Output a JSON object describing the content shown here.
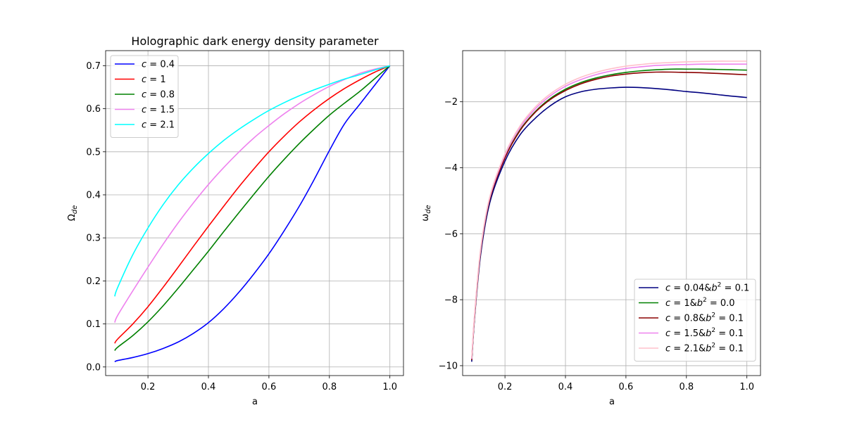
{
  "chart_data": [
    {
      "type": "line",
      "title": "Holographic dark energy density parameter",
      "xlabel": "a",
      "ylabel": "Ω_de",
      "xlim": [
        0.06,
        1.045
      ],
      "ylim": [
        -0.02,
        0.735
      ],
      "xticks": [
        0.2,
        0.4,
        0.6,
        0.8,
        1.0
      ],
      "xtick_labels": [
        "0.2",
        "0.4",
        "0.6",
        "0.8",
        "1.0"
      ],
      "yticks": [
        0.0,
        0.1,
        0.2,
        0.3,
        0.4,
        0.5,
        0.6,
        0.7
      ],
      "ytick_labels": [
        "0.0",
        "0.1",
        "0.2",
        "0.3",
        "0.4",
        "0.5",
        "0.6",
        "0.7"
      ],
      "grid": true,
      "legend_position": "top-left",
      "x": [
        0.09,
        0.1,
        0.15,
        0.2,
        0.25,
        0.3,
        0.35,
        0.4,
        0.45,
        0.5,
        0.55,
        0.6,
        0.65,
        0.7,
        0.75,
        0.8,
        0.85,
        0.9,
        0.95,
        1.0
      ],
      "series": [
        {
          "name_parts": [
            "c",
            "0.4"
          ],
          "color": "#0000ff",
          "values": [
            0.012,
            0.015,
            0.022,
            0.031,
            0.043,
            0.058,
            0.078,
            0.103,
            0.135,
            0.173,
            0.216,
            0.263,
            0.316,
            0.373,
            0.436,
            0.503,
            0.565,
            0.61,
            0.655,
            0.7
          ]
        },
        {
          "name_parts": [
            "c",
            "1"
          ],
          "color": "#ff0000",
          "values": [
            0.055,
            0.065,
            0.1,
            0.14,
            0.185,
            0.232,
            0.28,
            0.327,
            0.373,
            0.418,
            0.46,
            0.5,
            0.536,
            0.569,
            0.598,
            0.624,
            0.647,
            0.667,
            0.685,
            0.7
          ]
        },
        {
          "name_parts": [
            "c",
            "0.8"
          ],
          "color": "#008000",
          "values": [
            0.038,
            0.046,
            0.073,
            0.105,
            0.142,
            0.183,
            0.226,
            0.269,
            0.314,
            0.358,
            0.401,
            0.443,
            0.482,
            0.519,
            0.553,
            0.585,
            0.613,
            0.64,
            0.67,
            0.7
          ]
        },
        {
          "name_parts": [
            "c",
            "1.5"
          ],
          "color": "#ee82ee",
          "values": [
            0.103,
            0.12,
            0.177,
            0.232,
            0.285,
            0.335,
            0.381,
            0.424,
            0.463,
            0.499,
            0.532,
            0.561,
            0.588,
            0.612,
            0.633,
            0.652,
            0.668,
            0.682,
            0.692,
            0.7
          ]
        },
        {
          "name_parts": [
            "c",
            "2.1"
          ],
          "color": "#00ffff",
          "values": [
            0.164,
            0.185,
            0.261,
            0.323,
            0.377,
            0.423,
            0.462,
            0.496,
            0.526,
            0.552,
            0.575,
            0.596,
            0.614,
            0.63,
            0.644,
            0.657,
            0.669,
            0.679,
            0.69,
            0.7
          ]
        }
      ]
    },
    {
      "type": "line",
      "title": "",
      "xlabel": "a",
      "ylabel": "ω_de",
      "xlim": [
        0.06,
        1.045
      ],
      "ylim": [
        -10.3,
        -0.45
      ],
      "xticks": [
        0.2,
        0.4,
        0.6,
        0.8,
        1.0
      ],
      "xtick_labels": [
        "0.2",
        "0.4",
        "0.6",
        "0.8",
        "1.0"
      ],
      "yticks": [
        -10,
        -8,
        -6,
        -4,
        -2
      ],
      "ytick_labels": [
        "−10",
        "−8",
        "−6",
        "−4",
        "−2"
      ],
      "grid": true,
      "legend_position": "bottom-right",
      "x": [
        0.09,
        0.1,
        0.12,
        0.15,
        0.2,
        0.25,
        0.3,
        0.35,
        0.4,
        0.45,
        0.5,
        0.55,
        0.6,
        0.65,
        0.7,
        0.75,
        0.8,
        0.85,
        0.9,
        0.95,
        1.0
      ],
      "series": [
        {
          "name_parts": [
            "c",
            "0.04",
            "b",
            "0.1"
          ],
          "color": "#000080",
          "values": [
            -9.88,
            -8.5,
            -6.6,
            -5.05,
            -3.8,
            -3.0,
            -2.5,
            -2.12,
            -1.85,
            -1.7,
            -1.62,
            -1.58,
            -1.56,
            -1.57,
            -1.6,
            -1.64,
            -1.69,
            -1.73,
            -1.78,
            -1.83,
            -1.87
          ]
        },
        {
          "name_parts": [
            "c",
            "1",
            "b",
            "0.0"
          ],
          "color": "#008000",
          "values": [
            -9.83,
            -8.45,
            -6.5,
            -4.95,
            -3.68,
            -2.85,
            -2.3,
            -1.9,
            -1.62,
            -1.42,
            -1.28,
            -1.18,
            -1.11,
            -1.06,
            -1.03,
            -1.01,
            -1.01,
            -1.01,
            -1.02,
            -1.03,
            -1.04
          ]
        },
        {
          "name_parts": [
            "c",
            "0.8",
            "b",
            "0.1"
          ],
          "color": "#8b0000",
          "values": [
            -9.83,
            -8.45,
            -6.5,
            -4.95,
            -3.7,
            -2.87,
            -2.32,
            -1.93,
            -1.66,
            -1.46,
            -1.32,
            -1.22,
            -1.16,
            -1.12,
            -1.1,
            -1.1,
            -1.11,
            -1.12,
            -1.14,
            -1.16,
            -1.18
          ]
        },
        {
          "name_parts": [
            "c",
            "1.5",
            "b",
            "0.1"
          ],
          "color": "#ee82ee",
          "values": [
            -9.8,
            -8.4,
            -6.45,
            -4.9,
            -3.62,
            -2.78,
            -2.22,
            -1.82,
            -1.53,
            -1.33,
            -1.18,
            -1.07,
            -0.99,
            -0.94,
            -0.9,
            -0.88,
            -0.87,
            -0.86,
            -0.86,
            -0.86,
            -0.86
          ]
        },
        {
          "name_parts": [
            "c",
            "2.1",
            "b",
            "0.1"
          ],
          "color": "#ffc0cb",
          "values": [
            -9.78,
            -8.38,
            -6.42,
            -4.87,
            -3.58,
            -2.73,
            -2.16,
            -1.76,
            -1.47,
            -1.26,
            -1.11,
            -1.0,
            -0.92,
            -0.87,
            -0.83,
            -0.81,
            -0.79,
            -0.78,
            -0.77,
            -0.77,
            -0.77
          ]
        }
      ]
    }
  ]
}
